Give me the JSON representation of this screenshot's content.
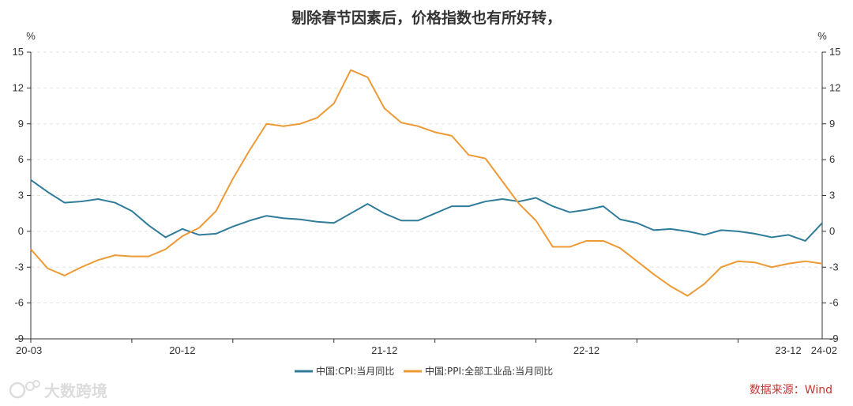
{
  "chart_data": {
    "type": "line",
    "title": "剔除春节因素后，价格指数也有所好转，",
    "left_unit": "%",
    "right_unit": "%",
    "ylim": [
      -9,
      15
    ],
    "yticks": [
      -9,
      -6,
      -3,
      0,
      3,
      6,
      9,
      12,
      15
    ],
    "x_start": "2020-03",
    "x_end": "2024-02",
    "x_tick_labels": [
      "20-03",
      "20-12",
      "21-12",
      "22-12",
      "23-12",
      "24-02"
    ],
    "x_label_months": [
      "2020-03",
      "2020-12",
      "2021-12",
      "2022-12",
      "2023-12",
      "2024-02"
    ],
    "grid": true,
    "legend_position": "bottom",
    "source": "数据来源：Wind",
    "series": [
      {
        "name": "中国:CPI:当月同比",
        "color": "#2f7b9a",
        "values": [
          4.3,
          3.3,
          2.4,
          2.5,
          2.7,
          2.4,
          1.7,
          0.5,
          -0.5,
          0.2,
          -0.3,
          -0.2,
          0.4,
          0.9,
          1.3,
          1.1,
          1.0,
          0.8,
          0.7,
          1.5,
          2.3,
          1.5,
          0.9,
          0.9,
          1.5,
          2.1,
          2.1,
          2.5,
          2.7,
          2.5,
          2.8,
          2.1,
          1.6,
          1.8,
          2.1,
          1.0,
          0.7,
          0.1,
          0.2,
          0.0,
          -0.3,
          0.1,
          0.0,
          -0.2,
          -0.5,
          -0.3,
          -0.8,
          0.7
        ]
      },
      {
        "name": "中国:PPI:全部工业品:当月同比",
        "color": "#ed9a35",
        "values": [
          -1.5,
          -3.1,
          -3.7,
          -3.0,
          -2.4,
          -2.0,
          -2.1,
          -2.1,
          -1.5,
          -0.4,
          0.3,
          1.7,
          4.4,
          6.8,
          9.0,
          8.8,
          9.0,
          9.5,
          10.7,
          13.5,
          12.9,
          10.3,
          9.1,
          8.8,
          8.3,
          8.0,
          6.4,
          6.1,
          4.2,
          2.3,
          0.9,
          -1.3,
          -1.3,
          -0.8,
          -0.8,
          -1.4,
          -2.5,
          -3.6,
          -4.6,
          -5.4,
          -4.4,
          -3.0,
          -2.5,
          -2.6,
          -3.0,
          -2.7,
          -2.5,
          -2.7
        ]
      }
    ]
  },
  "watermark": "大数跨境"
}
